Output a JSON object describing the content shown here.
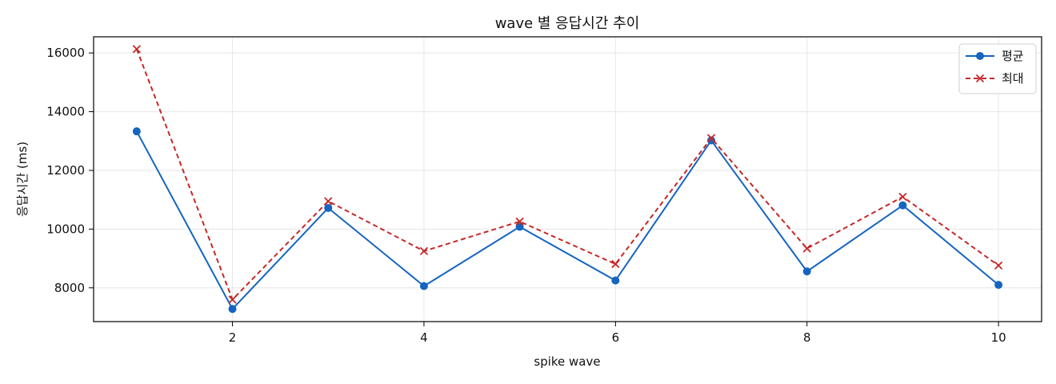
{
  "chart_data": {
    "type": "line",
    "title": "wave 별 응답시간 추이",
    "xlabel": "spike wave",
    "ylabel": "응답시간 (ms)",
    "x": [
      1,
      2,
      3,
      4,
      5,
      6,
      7,
      8,
      9,
      10
    ],
    "xlim": [
      0.55,
      10.45
    ],
    "ylim": [
      6850,
      16550
    ],
    "xticks": [
      2,
      4,
      6,
      8,
      10
    ],
    "yticks": [
      8000,
      10000,
      12000,
      14000,
      16000
    ],
    "grid": true,
    "legend_position": "top-right",
    "series": [
      {
        "name": "평균",
        "values": [
          13330,
          7280,
          10720,
          8060,
          10080,
          8250,
          13020,
          8560,
          10810,
          8100
        ],
        "color": "#1565c0",
        "line_style": "solid",
        "marker": "circle"
      },
      {
        "name": "최대",
        "values": [
          16130,
          7600,
          10950,
          9250,
          10260,
          8810,
          13100,
          9340,
          11100,
          8760
        ],
        "color": "#c62828",
        "line_style": "dashed",
        "marker": "x"
      }
    ]
  }
}
